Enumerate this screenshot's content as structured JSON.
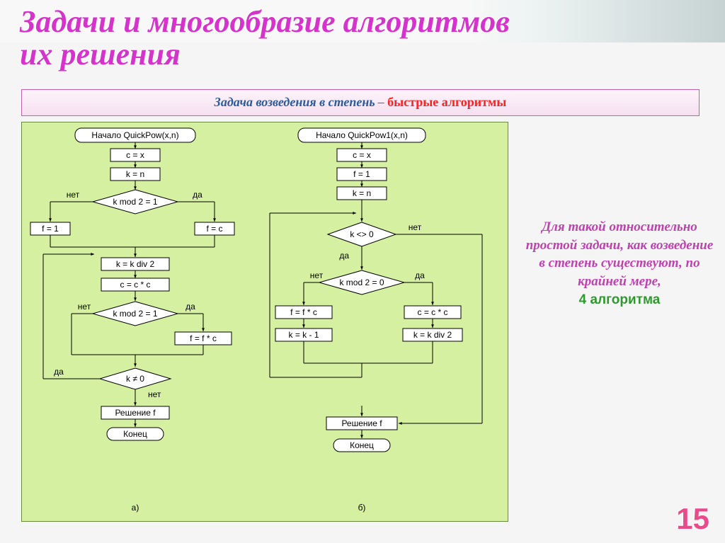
{
  "title_line1": "Задачи и многообразие алгоритмов",
  "title_line2": "их решения",
  "subtitle_part1": "Задача возведения в степень",
  "subtitle_dash": " – ",
  "subtitle_part2": "быстрые алгоритмы",
  "side_text": "Для такой относительно простой задачи, как возведение в степень существуют, по крайней мере,",
  "side_highlight": "4 алгоритма",
  "page_number": "15",
  "diagram": {
    "bg": "#d4f0a0",
    "node_fill": "#ffffff",
    "node_stroke": "#000000",
    "line_stroke": "#000000",
    "font_size": 12,
    "label_a": "а)",
    "label_b": "б)",
    "flowA": {
      "start": "Начало QuickPow(x,n)",
      "n1": "c = x",
      "n2": "k = n",
      "d1": "k mod 2 = 1",
      "d1_no": "нет",
      "d1_yes": "да",
      "n3a": "f = 1",
      "n3b": "f = c",
      "n4": "k = k div 2",
      "n5": "c = c * c",
      "d2": "k mod 2 = 1",
      "d2_no": "нет",
      "d2_yes": "да",
      "n6": "f = f * c",
      "d3": "k ≠ 0",
      "d3_yes": "да",
      "d3_no": "нет",
      "n7": "Решение f",
      "end": "Конец"
    },
    "flowB": {
      "start": "Начало QuickPow1(x,n)",
      "n1": "c = x",
      "n2": "f = 1",
      "n3": "k = n",
      "d1": "k <> 0",
      "d1_no": "нет",
      "d1_yes": "да",
      "d2": "k mod 2 = 0",
      "d2_no": "нет",
      "d2_yes": "да",
      "n4a": "f = f * c",
      "n4b": "c = c * c",
      "n5a": "k = k - 1",
      "n5b": "k = k div 2",
      "n6": "Решение f",
      "end": "Конец"
    }
  }
}
